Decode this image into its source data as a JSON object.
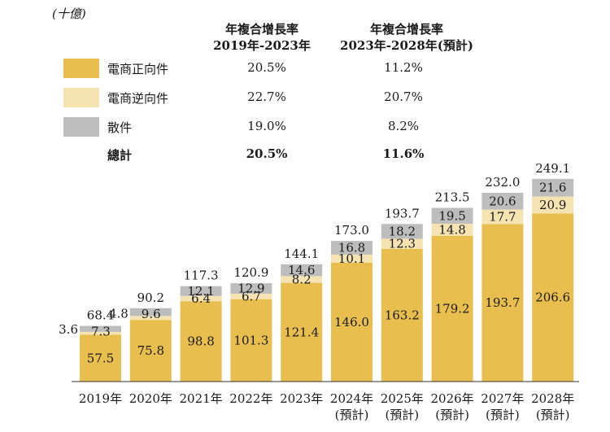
{
  "unit_label": "(十億)",
  "table": {
    "header_cagr1_line1": "年複合增長率",
    "header_cagr1_line2": "2019年-2023年",
    "header_cagr2_line1": "年複合增長率",
    "header_cagr2_line2": "2023年-2028年(預計)",
    "rows": [
      {
        "label": "電商正向件",
        "cagr1": "20.5%",
        "cagr2": "11.2%",
        "color": "#e8be4f"
      },
      {
        "label": "電商逆向件",
        "cagr1": "22.7%",
        "cagr2": "20.7%",
        "color": "#f6e3b2"
      },
      {
        "label": "散件",
        "cagr1": "19.0%",
        "cagr2": "8.2%",
        "color": "#bdbdbd"
      },
      {
        "label": "總計",
        "cagr1": "20.5%",
        "cagr2": "11.6%"
      }
    ]
  },
  "chart_data": {
    "type": "bar",
    "stacked": true,
    "title": "",
    "ylabel": "(十億)",
    "ylim": [
      0,
      260
    ],
    "categories": [
      [
        "2019年"
      ],
      [
        "2020年"
      ],
      [
        "2021年"
      ],
      [
        "2022年"
      ],
      [
        "2023年"
      ],
      [
        "2024年",
        "(預計)"
      ],
      [
        "2025年",
        "(預計)"
      ],
      [
        "2026年",
        "(預計)"
      ],
      [
        "2027年",
        "(預計)"
      ],
      [
        "2028年",
        "(預計)"
      ]
    ],
    "series": [
      {
        "name": "電商正向件",
        "color": "#e8be4f",
        "values": [
          57.5,
          75.8,
          98.8,
          101.3,
          121.4,
          146.0,
          163.2,
          179.2,
          193.7,
          206.6
        ]
      },
      {
        "name": "電商逆向件",
        "color": "#f6e3b2",
        "values": [
          3.6,
          4.8,
          6.4,
          6.7,
          8.2,
          10.1,
          12.3,
          14.8,
          17.7,
          20.9
        ]
      },
      {
        "name": "散件",
        "color": "#bdbdbd",
        "values": [
          7.3,
          9.6,
          12.1,
          12.9,
          14.6,
          16.8,
          18.2,
          19.5,
          20.6,
          21.6
        ]
      }
    ],
    "totals": [
      68.4,
      90.2,
      117.3,
      120.9,
      144.1,
      173.0,
      193.7,
      213.5,
      232.0,
      249.1
    ]
  }
}
